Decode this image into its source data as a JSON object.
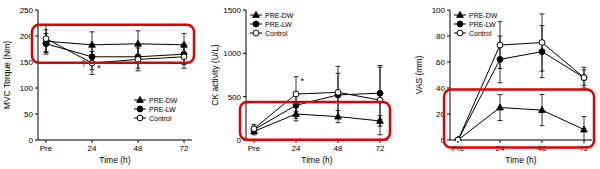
{
  "chart_data": [
    {
      "type": "line",
      "y_label": "MVC Torque (Nm)",
      "x_label": "Time (h)",
      "categories": [
        "Pre",
        "24",
        "48",
        "72"
      ],
      "ylim": [
        0,
        250
      ],
      "yticks": [
        0,
        50,
        100,
        150,
        200,
        250
      ],
      "legend": "lower right",
      "series": [
        {
          "name": "PRE-DW",
          "color": "#000000",
          "marker": "triangle",
          "line_style": "solid",
          "values": [
            190,
            183,
            185,
            183
          ],
          "errors": [
            22,
            25,
            25,
            22
          ]
        },
        {
          "name": "PRE-LW",
          "color": "#000000",
          "marker": "circle",
          "line_style": "solid",
          "values": [
            185,
            160,
            160,
            165
          ],
          "errors": [
            20,
            25,
            22,
            20
          ]
        },
        {
          "name": "Control",
          "color": "#000000",
          "marker": "circle-open",
          "line_style": "solid",
          "values": [
            195,
            148,
            155,
            160
          ],
          "errors": [
            25,
            22,
            22,
            22
          ]
        }
      ],
      "annotations": [
        {
          "text": "*",
          "x": 1.15,
          "y": 132
        },
        {
          "text": "†",
          "x": 0.82,
          "y": 140
        }
      ]
    },
    {
      "type": "line",
      "y_label": "CK activity (U/L)",
      "x_label": "Time (h)",
      "categories": [
        "Pre",
        "24",
        "48",
        "72"
      ],
      "ylim": [
        0,
        1500
      ],
      "yticks": [
        0,
        500,
        1000,
        1500
      ],
      "legend": "upper left",
      "series": [
        {
          "name": "PRE-DW",
          "color": "#000000",
          "marker": "triangle",
          "line_style": "solid",
          "values": [
            100,
            300,
            270,
            220
          ],
          "errors": [
            40,
            80,
            70,
            60
          ]
        },
        {
          "name": "PRE-LW",
          "color": "#000000",
          "marker": "circle",
          "line_style": "solid",
          "values": [
            120,
            400,
            520,
            540
          ],
          "errors": [
            40,
            150,
            250,
            300
          ]
        },
        {
          "name": "Control",
          "color": "#000000",
          "marker": "circle-open",
          "line_style": "solid",
          "values": [
            130,
            530,
            550,
            460
          ],
          "errors": [
            50,
            200,
            300,
            400
          ]
        }
      ],
      "annotations": [
        {
          "text": "*",
          "x": 1.15,
          "y": 650
        }
      ]
    },
    {
      "type": "line",
      "y_label": "VAS (mm)",
      "x_label": "Time (h)",
      "categories": [
        "Pre",
        "24",
        "48",
        "72"
      ],
      "ylim": [
        0,
        100
      ],
      "yticks": [
        0,
        20,
        40,
        60,
        80,
        100
      ],
      "legend": "upper left",
      "series": [
        {
          "name": "PRE-DW",
          "color": "#000000",
          "marker": "triangle",
          "line_style": "solid",
          "values": [
            0,
            25,
            23,
            8
          ],
          "errors": [
            0,
            10,
            12,
            10
          ]
        },
        {
          "name": "PRE-LW",
          "color": "#000000",
          "marker": "circle",
          "line_style": "solid",
          "values": [
            0,
            62,
            68,
            48
          ],
          "errors": [
            0,
            18,
            20,
            8
          ]
        },
        {
          "name": "Control",
          "color": "#000000",
          "marker": "circle-open",
          "line_style": "solid",
          "values": [
            0,
            73,
            75,
            48
          ],
          "errors": [
            0,
            18,
            22,
            6
          ]
        }
      ],
      "annotations": []
    }
  ]
}
